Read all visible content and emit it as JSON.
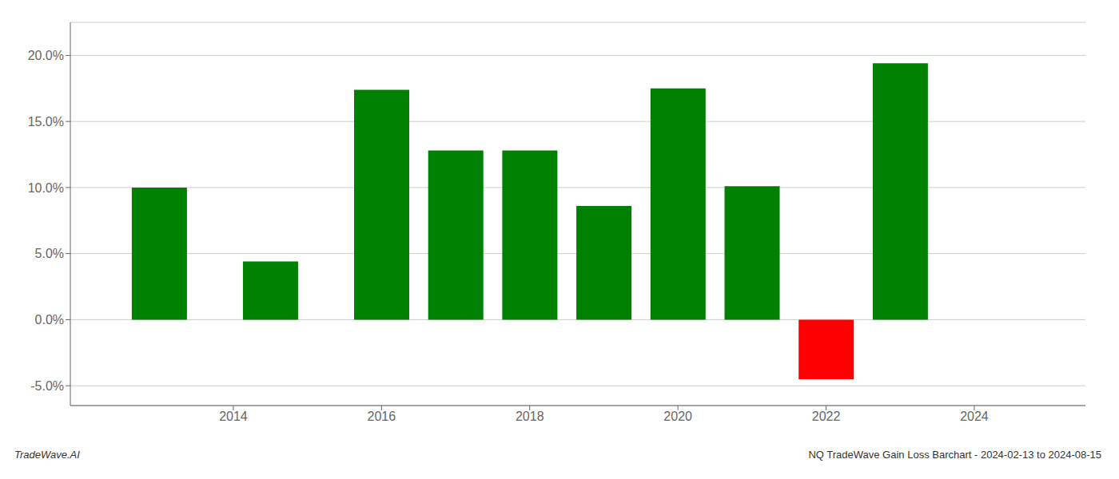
{
  "chart_data": {
    "type": "bar",
    "x": [
      2013,
      2014.5,
      2016,
      2017,
      2018,
      2019,
      2020,
      2021,
      2022,
      2023
    ],
    "values": [
      10.0,
      4.4,
      17.4,
      12.8,
      12.8,
      8.6,
      17.5,
      10.1,
      -4.5,
      19.4
    ],
    "colors": [
      "#008000",
      "#008000",
      "#008000",
      "#008000",
      "#008000",
      "#008000",
      "#008000",
      "#008000",
      "#ff0000",
      "#008000"
    ],
    "xlim": [
      2011.8,
      2025.5
    ],
    "xticks": [
      2014,
      2016,
      2018,
      2020,
      2022,
      2024
    ],
    "ylim": [
      -6.5,
      22.5
    ],
    "yticks": [
      {
        "value": -5.0,
        "label": "-5.0%"
      },
      {
        "value": 0.0,
        "label": "0.0%"
      },
      {
        "value": 5.0,
        "label": "5.0%"
      },
      {
        "value": 10.0,
        "label": "10.0%"
      },
      {
        "value": 15.0,
        "label": "15.0%"
      },
      {
        "value": 20.0,
        "label": "20.0%"
      }
    ],
    "grid": true,
    "annotations": [
      "TradeWave.AI",
      "NQ TradeWave Gain Loss Barchart - 2024-02-13 to 2024-08-15"
    ]
  }
}
